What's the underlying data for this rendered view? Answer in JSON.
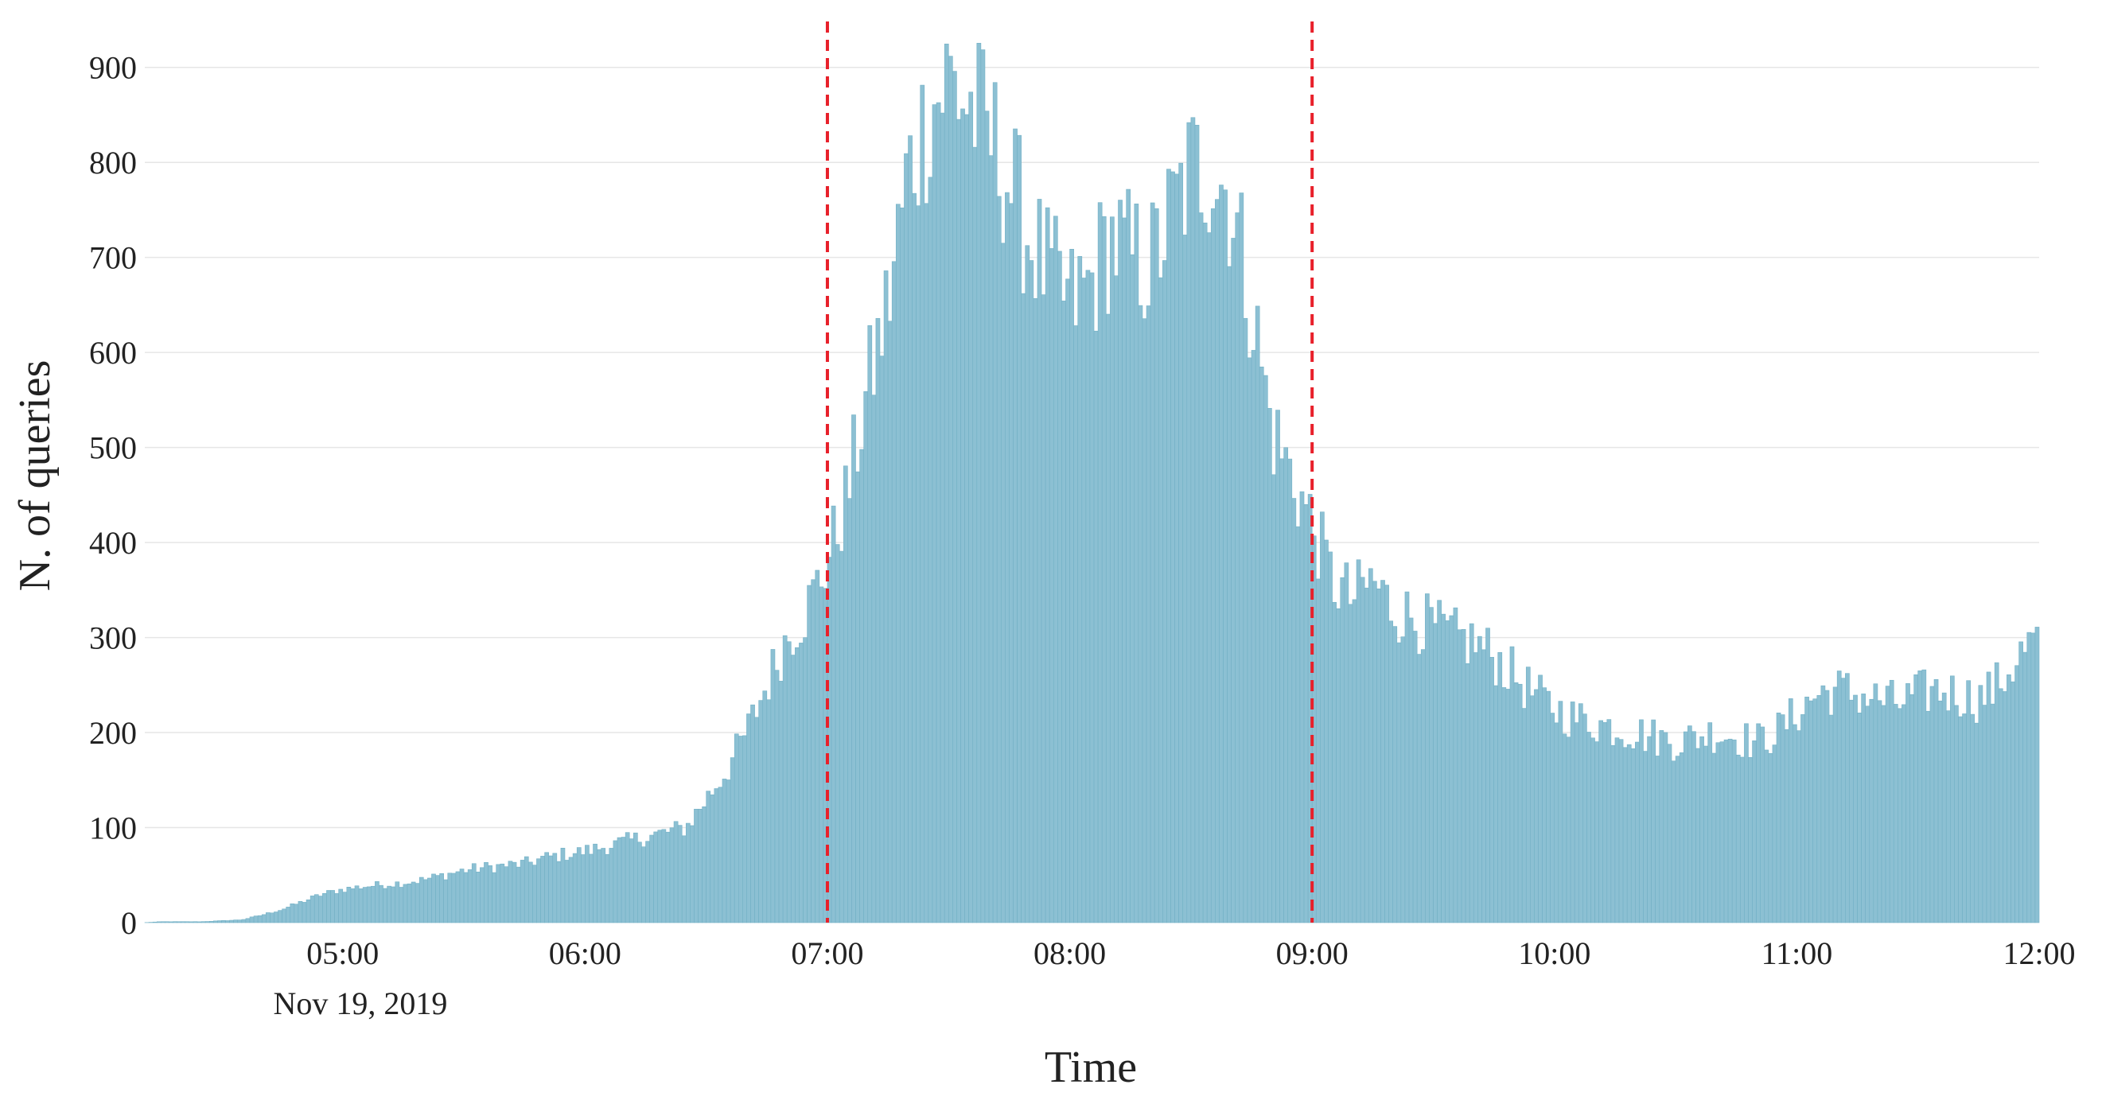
{
  "chart_data": {
    "type": "bar",
    "title": "",
    "xlabel": "Time",
    "ylabel": "N. of queries",
    "date_label": "Nov 19, 2019",
    "ylim": [
      0,
      950
    ],
    "xlim": [
      "04:11",
      "12:00"
    ],
    "grid": "horizontal",
    "bar_color": "#8cc0d3",
    "y_ticks": [
      {
        "value": 0,
        "label": "0"
      },
      {
        "value": 100,
        "label": "100"
      },
      {
        "value": 200,
        "label": "200"
      },
      {
        "value": 300,
        "label": "300"
      },
      {
        "value": 400,
        "label": "400"
      },
      {
        "value": 500,
        "label": "500"
      },
      {
        "value": 600,
        "label": "600"
      },
      {
        "value": 700,
        "label": "700"
      },
      {
        "value": 800,
        "label": "800"
      },
      {
        "value": 900,
        "label": "900"
      }
    ],
    "x_ticks": [
      {
        "value": "05:00",
        "label": "05:00"
      },
      {
        "value": "06:00",
        "label": "06:00"
      },
      {
        "value": "07:00",
        "label": "07:00"
      },
      {
        "value": "08:00",
        "label": "08:00"
      },
      {
        "value": "09:00",
        "label": "09:00"
      },
      {
        "value": "10:00",
        "label": "10:00"
      },
      {
        "value": "11:00",
        "label": "11:00"
      },
      {
        "value": "12:00",
        "label": "12:00"
      }
    ],
    "reference_lines": [
      {
        "x": "07:00",
        "color": "#e8202a",
        "style": "dashed"
      },
      {
        "x": "09:00",
        "color": "#e8202a",
        "style": "dashed"
      }
    ],
    "series": [
      {
        "bin_minutes": 1,
        "x": [
          "04:15",
          "04:20",
          "04:25",
          "04:30",
          "04:35",
          "04:40",
          "04:45",
          "04:50",
          "04:55",
          "05:00",
          "05:05",
          "05:10",
          "05:15",
          "05:20",
          "05:25",
          "05:30",
          "05:35",
          "05:40",
          "05:45",
          "05:50",
          "05:55",
          "06:00",
          "06:05",
          "06:10",
          "06:15",
          "06:20",
          "06:25",
          "06:30",
          "06:35",
          "06:40",
          "06:45",
          "06:50",
          "06:55",
          "07:00",
          "07:05",
          "07:10",
          "07:15",
          "07:20",
          "07:25",
          "07:30",
          "07:35",
          "07:40",
          "07:45",
          "07:50",
          "07:55",
          "08:00",
          "08:05",
          "08:10",
          "08:15",
          "08:20",
          "08:25",
          "08:30",
          "08:35",
          "08:40",
          "08:45",
          "08:50",
          "08:55",
          "09:00",
          "09:05",
          "09:10",
          "09:15",
          "09:20",
          "09:25",
          "09:30",
          "09:35",
          "09:40",
          "09:45",
          "09:50",
          "09:55",
          "10:00",
          "10:05",
          "10:10",
          "10:15",
          "10:20",
          "10:25",
          "10:30",
          "10:35",
          "10:40",
          "10:45",
          "10:50",
          "10:55",
          "11:00",
          "11:05",
          "11:10",
          "11:15",
          "11:20",
          "11:25",
          "11:30",
          "11:35",
          "11:40",
          "11:45",
          "11:50",
          "11:55",
          "12:00"
        ],
        "values": [
          1,
          1,
          1,
          2,
          3,
          8,
          14,
          22,
          30,
          35,
          38,
          40,
          42,
          45,
          50,
          55,
          58,
          60,
          62,
          68,
          72,
          75,
          80,
          85,
          90,
          95,
          100,
          130,
          160,
          200,
          250,
          300,
          330,
          380,
          450,
          560,
          650,
          790,
          850,
          890,
          860,
          830,
          780,
          720,
          680,
          650,
          670,
          720,
          700,
          690,
          740,
          790,
          800,
          760,
          650,
          520,
          470,
          420,
          360,
          340,
          360,
          330,
          320,
          310,
          300,
          295,
          280,
          260,
          240,
          225,
          215,
          210,
          205,
          200,
          195,
          190,
          195,
          200,
          195,
          190,
          200,
          220,
          240,
          245,
          240,
          235,
          230,
          240,
          245,
          240,
          235,
          250,
          280,
          300
        ]
      }
    ]
  }
}
